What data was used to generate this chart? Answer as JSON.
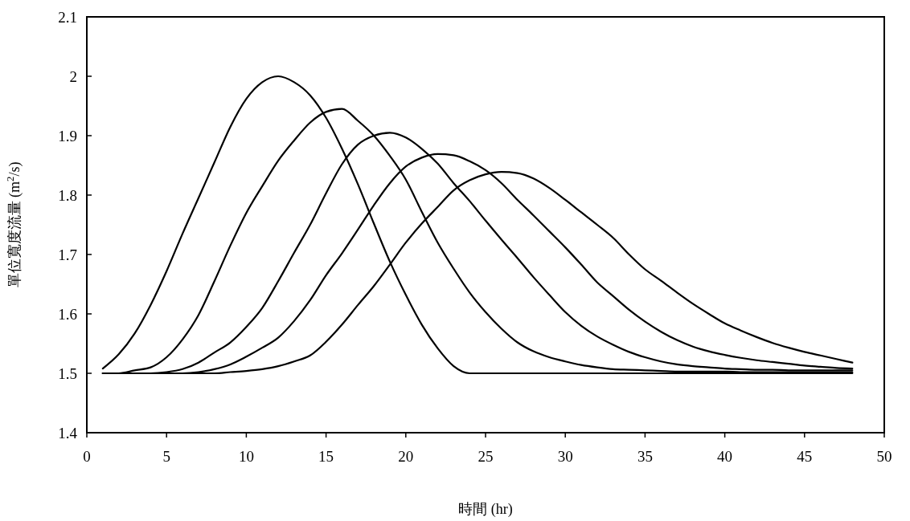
{
  "chart_data": {
    "type": "line",
    "xlabel": "時間 (hr)",
    "ylabel": "單位寬度流量 (m$^{2}$/s)",
    "x": [
      1,
      2,
      3,
      4,
      5,
      6,
      7,
      8,
      9,
      10,
      11,
      12,
      13,
      14,
      15,
      16,
      17,
      18,
      19,
      20,
      21,
      22,
      23,
      24,
      25,
      26,
      27,
      28,
      29,
      30,
      31,
      32,
      33,
      34,
      35,
      36,
      37,
      38,
      39,
      40,
      41,
      42,
      43,
      44,
      45,
      46,
      47,
      48
    ],
    "series": [
      {
        "color": "#000000",
        "values": [
          1.508,
          1.532,
          1.567,
          1.615,
          1.672,
          1.735,
          1.795,
          1.855,
          1.915,
          1.962,
          1.99,
          2.0,
          1.99,
          1.968,
          1.93,
          1.878,
          1.818,
          1.752,
          1.688,
          1.632,
          1.582,
          1.542,
          1.512,
          1.5,
          1.5,
          1.5,
          1.5,
          1.5,
          1.5,
          1.5,
          1.5,
          1.5,
          1.5,
          1.5,
          1.5,
          1.5,
          1.5,
          1.5,
          1.5,
          1.5,
          1.5,
          1.5,
          1.5,
          1.5,
          1.5,
          1.5,
          1.5,
          1.5
        ]
      },
      {
        "color": "#000000",
        "values": [
          1.5,
          1.5,
          1.505,
          1.51,
          1.527,
          1.557,
          1.598,
          1.655,
          1.715,
          1.77,
          1.815,
          1.858,
          1.892,
          1.922,
          1.94,
          1.945,
          1.925,
          1.9,
          1.866,
          1.826,
          1.772,
          1.72,
          1.676,
          1.636,
          1.603,
          1.575,
          1.552,
          1.537,
          1.527,
          1.52,
          1.514,
          1.51,
          1.507,
          1.506,
          1.505,
          1.504,
          1.503,
          1.503,
          1.503,
          1.503,
          1.502,
          1.502,
          1.502,
          1.502,
          1.502,
          1.502,
          1.502,
          1.502
        ]
      },
      {
        "color": "#000000",
        "values": [
          1.5,
          1.5,
          1.5,
          1.5,
          1.502,
          1.507,
          1.518,
          1.535,
          1.552,
          1.578,
          1.61,
          1.655,
          1.703,
          1.75,
          1.803,
          1.852,
          1.885,
          1.9,
          1.905,
          1.897,
          1.878,
          1.853,
          1.82,
          1.79,
          1.757,
          1.725,
          1.694,
          1.662,
          1.632,
          1.603,
          1.58,
          1.562,
          1.548,
          1.536,
          1.527,
          1.52,
          1.515,
          1.512,
          1.51,
          1.508,
          1.507,
          1.506,
          1.506,
          1.505,
          1.505,
          1.505,
          1.505,
          1.505
        ]
      },
      {
        "color": "#000000",
        "values": [
          1.5,
          1.5,
          1.5,
          1.5,
          1.5,
          1.5,
          1.502,
          1.507,
          1.515,
          1.528,
          1.543,
          1.56,
          1.588,
          1.623,
          1.665,
          1.702,
          1.742,
          1.783,
          1.82,
          1.848,
          1.863,
          1.869,
          1.867,
          1.857,
          1.842,
          1.82,
          1.792,
          1.766,
          1.739,
          1.712,
          1.683,
          1.653,
          1.63,
          1.607,
          1.587,
          1.57,
          1.556,
          1.545,
          1.537,
          1.531,
          1.526,
          1.522,
          1.519,
          1.516,
          1.513,
          1.511,
          1.509,
          1.508
        ]
      },
      {
        "color": "#000000",
        "values": [
          1.5,
          1.5,
          1.5,
          1.5,
          1.5,
          1.5,
          1.5,
          1.5,
          1.502,
          1.504,
          1.507,
          1.512,
          1.52,
          1.53,
          1.553,
          1.582,
          1.615,
          1.647,
          1.683,
          1.72,
          1.752,
          1.78,
          1.808,
          1.825,
          1.835,
          1.839,
          1.837,
          1.828,
          1.812,
          1.792,
          1.771,
          1.75,
          1.728,
          1.7,
          1.675,
          1.656,
          1.636,
          1.617,
          1.6,
          1.584,
          1.572,
          1.561,
          1.551,
          1.543,
          1.536,
          1.53,
          1.524,
          1.518
        ]
      }
    ],
    "xlim": [
      0,
      50
    ],
    "xticks": [
      0,
      5,
      10,
      15,
      20,
      25,
      30,
      35,
      40,
      45,
      50
    ],
    "ylim": [
      1.4,
      2.1
    ],
    "yticks": [
      1.4,
      1.5,
      1.6,
      1.7,
      1.8,
      1.9,
      2,
      2.1
    ],
    "grid": false,
    "marker": "none",
    "line_style": "solid"
  }
}
